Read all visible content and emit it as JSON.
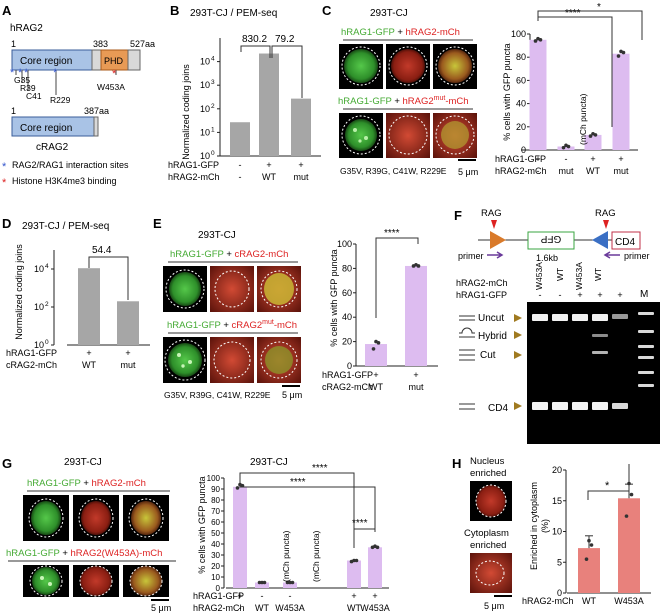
{
  "colors": {
    "core": "#a9c3e6",
    "core_stroke": "#3a5e99",
    "phd": "#e89a55",
    "gray_bar": "#a6a6a6",
    "pink_bar": "#ddbcf0",
    "pink_stroke": "#a98ac7",
    "salmon_bar": "#e8817c",
    "green_text": "#44aa33",
    "red_text": "#dd2222",
    "blue_star": "#3355cc",
    "red_star": "#dd2222",
    "arrow_purple": "#6a3a9a",
    "tri_orange": "#d97a2a",
    "tri_blue": "#3a6fc4",
    "gfp_green": "#3aa540",
    "cd4_red": "#c0304a"
  },
  "panelA": {
    "letter": "A",
    "hrag2_title": "hRAG2",
    "pos_1": "1",
    "pos_383": "383",
    "pos_527": "527aa",
    "core_label": "Core region",
    "phd_label": "PHD",
    "mut_labels": [
      "G35",
      "R39",
      "C41",
      "R229"
    ],
    "w453a": "W453A",
    "crag2_pos_1": "1",
    "crag2_pos_387": "387aa",
    "crag2_core_label": "Core region",
    "crag2_title": "cRAG2",
    "legend_blue": "RAG2/RAG1 interaction sites",
    "legend_red": "Histone H3K4me3 binding",
    "star": "*"
  },
  "panelB": {
    "letter": "B",
    "title": "293T-CJ / PEM-seq",
    "ylabel": "Normalized coding joins",
    "row1": "hRAG1-GFP",
    "row2": "hRAG2-mCh",
    "row1_vals": [
      "-",
      "+",
      "+"
    ],
    "row2_vals": [
      "-",
      "WT",
      "mut"
    ],
    "fold1": "830.2",
    "fold2": "79.2",
    "yticks": [
      "10",
      "10",
      "10",
      "10",
      "10"
    ],
    "yexps": [
      "0",
      "1",
      "2",
      "3",
      "4"
    ]
  },
  "panelC": {
    "letter": "C",
    "title": "293T-CJ",
    "lbl1_green": "hRAG1-GFP",
    "lbl1_plus": " + ",
    "lbl1_red": "hRAG2-mCh",
    "lbl2_green": "hRAG1-GFP",
    "lbl2_plus": " + ",
    "lbl2_red": "hRAG2",
    "lbl2_sup": "mut",
    "lbl2_red_end": "-mCh",
    "mutations": "G35V, R39G, C41W, R229E",
    "scale": "5 μm",
    "ylabel": "% cells with GFP puncta",
    "yticks": [
      "0",
      "20",
      "40",
      "60",
      "80",
      "100"
    ],
    "row1": "hRAG1-GFP",
    "row2": "hRAG2-mCh",
    "row1_vals": [
      "+",
      "-",
      "+",
      "+"
    ],
    "row2_vals": [
      "-",
      "mut",
      "WT",
      "mut"
    ],
    "note": "(mCh puncta)",
    "sig1": "****",
    "sig2": "*"
  },
  "panelD": {
    "letter": "D",
    "title": "293T-CJ / PEM-seq",
    "ylabel": "Normalized coding joins",
    "fold": "54.4",
    "row1": "hRAG1-GFP",
    "row2": "cRAG2-mCh",
    "row1_vals": [
      "+",
      "+"
    ],
    "row2_vals": [
      "WT",
      "mut"
    ],
    "yticks": [
      "10",
      "10",
      "10"
    ],
    "yexps": [
      "0",
      "2",
      "4"
    ]
  },
  "panelE": {
    "letter": "E",
    "title": "293T-CJ",
    "lbl1_green": "hRAG1-GFP",
    "lbl1_plus": " + ",
    "lbl1_red": "cRAG2-mCh",
    "lbl2_green": "hRAG1-GFP",
    "lbl2_plus": " + ",
    "lbl2_red": "cRAG2",
    "lbl2_sup": "mut",
    "lbl2_red_end": "-mCh",
    "mutations": "G35V, R39G, C41W, R229E",
    "scale": "5 μm",
    "ylabel": "% cells with GFP puncta",
    "yticks": [
      "0",
      "20",
      "40",
      "60",
      "80",
      "100"
    ],
    "row1": "hRAG1-GFP",
    "row2": "cRAG2-mCh",
    "row1_vals": [
      "+",
      "+"
    ],
    "row2_vals": [
      "WT",
      "mut"
    ],
    "sig": "****"
  },
  "panelF": {
    "letter": "F",
    "rag_left": "RAG",
    "rag_right": "RAG",
    "gfp": "GFP",
    "cd4": "CD4",
    "size": "1.6kb",
    "primer_left": "primer",
    "primer_right": "primer",
    "lane_headers": [
      "W453A",
      "WT",
      "W453A",
      "WT"
    ],
    "row1": "hRAG2-mCh",
    "row2": "hRAG1-GFP",
    "row1_vals": [
      "W453A",
      "WT",
      "W453A",
      "WT",
      "",
      ""
    ],
    "row2_vals": [
      "-",
      "-",
      "+",
      "+",
      "+",
      ""
    ],
    "marker": "M",
    "band_uncut": "Uncut",
    "band_hybrid": "Hybrid",
    "band_cut": "Cut",
    "band_cd4": "CD4"
  },
  "panelG": {
    "letter": "G",
    "title_left": "293T-CJ",
    "title_right": "293T-CJ",
    "lbl1_green": "hRAG1-GFP",
    "lbl1_plus": " + ",
    "lbl1_red": "hRAG2-mCh",
    "lbl2_green": "hRAG1-GFP",
    "lbl2_plus": " + ",
    "lbl2_red": "hRAG2(W453A)-mCh",
    "scale": "5 μm",
    "ylabel": "% cells with GFP puncta",
    "yticks": [
      "0",
      "10",
      "20",
      "30",
      "40",
      "50",
      "60",
      "70",
      "80",
      "90",
      "100"
    ],
    "row1": "hRAG1-GFP",
    "row2": "hRAG2-mCh",
    "row1_vals": [
      "+",
      "-",
      "-",
      "+",
      "+"
    ],
    "row2_vals": [
      "-",
      "WT",
      "W453A",
      "WT",
      "W453A"
    ],
    "note": "(mCh puncta)",
    "sig": "****"
  },
  "panelH": {
    "letter": "H",
    "lbl_nucleus_1": "Nucleus",
    "lbl_nucleus_2": "enriched",
    "lbl_cyto_1": "Cytoplasm",
    "lbl_cyto_2": "enriched",
    "scale": "5 μm",
    "ylabel_1": "Enriched in cytoplasm",
    "ylabel_2": "(%)",
    "yticks": [
      "0",
      "5",
      "10",
      "15",
      "20"
    ],
    "row": "hRAG2-mCh",
    "row_vals": [
      "WT",
      "W453A"
    ],
    "sig": "*"
  },
  "chart_data": [
    {
      "type": "bar",
      "panel": "B",
      "title": "293T-CJ / PEM-seq",
      "ylabel": "Normalized coding joins",
      "yscale": "log",
      "ylim": [
        1,
        100000
      ],
      "categories": [
        "-/-",
        "+/WT",
        "+/mut"
      ],
      "values": [
        27,
        22000,
        270
      ]
    },
    {
      "type": "bar",
      "panel": "C",
      "ylabel": "% cells with GFP puncta",
      "ylim": [
        0,
        100
      ],
      "categories": [
        "+/-",
        "-/mut",
        "+/WT",
        "+/mut"
      ],
      "values": [
        95,
        3,
        13,
        83
      ],
      "points": [
        [
          94,
          96,
          95
        ],
        [
          2,
          4,
          3
        ],
        [
          12,
          14,
          13
        ],
        [
          81,
          85,
          84
        ]
      ]
    },
    {
      "type": "bar",
      "panel": "D",
      "title": "293T-CJ / PEM-seq",
      "ylabel": "Normalized coding joins",
      "yscale": "log",
      "ylim": [
        1,
        100000
      ],
      "categories": [
        "+/WT",
        "+/mut"
      ],
      "values": [
        11000,
        200
      ]
    },
    {
      "type": "bar",
      "panel": "E",
      "ylabel": "% cells with GFP puncta",
      "ylim": [
        0,
        100
      ],
      "categories": [
        "+/WT",
        "+/mut"
      ],
      "values": [
        18,
        82
      ],
      "points": [
        [
          14,
          20,
          19
        ],
        [
          82,
          83,
          82
        ]
      ]
    },
    {
      "type": "bar",
      "panel": "G",
      "ylabel": "% cells with GFP puncta",
      "ylim": [
        0,
        100
      ],
      "categories": [
        "+/-",
        "-/WT",
        "-/W453A",
        "+/WT",
        "+/W453A"
      ],
      "values": [
        92,
        5,
        5,
        25,
        37
      ],
      "points": [
        [
          91,
          94,
          93
        ],
        [
          5,
          5,
          5
        ],
        [
          5,
          5,
          5
        ],
        [
          24,
          25,
          25
        ],
        [
          37,
          38,
          37
        ]
      ]
    },
    {
      "type": "bar",
      "panel": "H",
      "ylabel": "Enriched in cytoplasm (%)",
      "ylim": [
        0,
        20
      ],
      "categories": [
        "WT",
        "W453A"
      ],
      "values": [
        7.3,
        15.4
      ],
      "errors": [
        2.0,
        2.3
      ],
      "points": [
        [
          5.5,
          8.5,
          7.8
        ],
        [
          12.5,
          17.8,
          16.0
        ]
      ]
    }
  ]
}
